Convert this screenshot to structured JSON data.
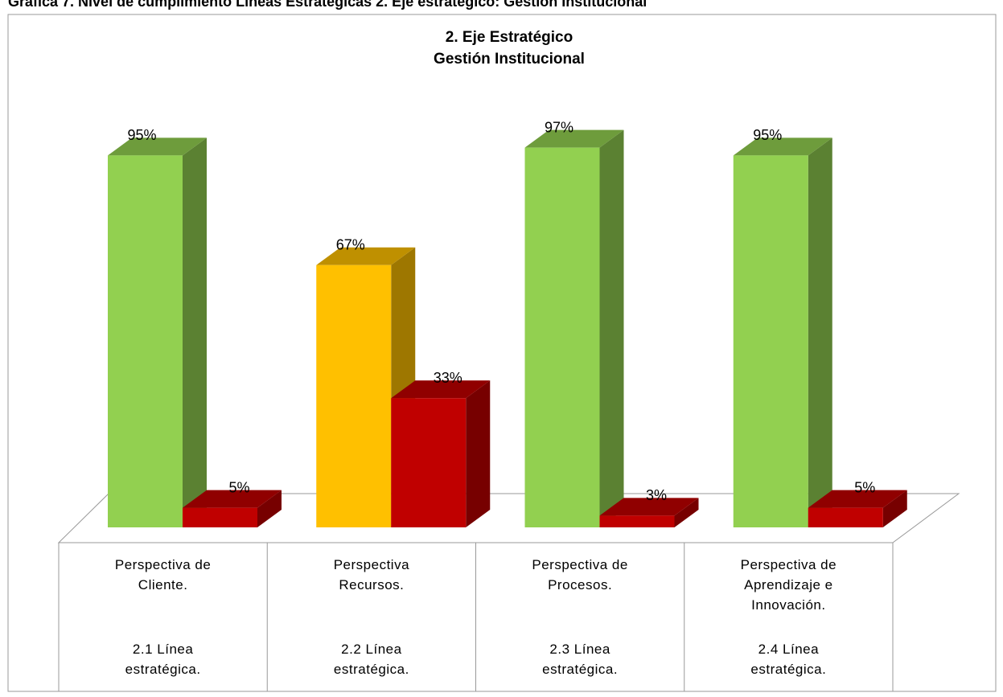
{
  "chart_data": {
    "type": "bar3d",
    "caption": "Gráfica 7. Nivel de cumplimiento Líneas Estratégicas 2. Eje estratégico: Gestión Institucional",
    "title": [
      "2. Eje Estratégico",
      "Gestión Institucional"
    ],
    "categories": [
      "Perspectiva de Cliente.",
      "Perspectiva Recursos.",
      "Perspectiva de Procesos.",
      "Perspectiva de Aprendizaje e Innovación."
    ],
    "subcategories": [
      "2.1 Línea estratégica.",
      "2.2 Línea estratégica.",
      "2.3 Línea estratégica.",
      "2.4 Línea estratégica."
    ],
    "series": [
      {
        "colors": [
          "#92d050",
          "#ffc000",
          "#92d050",
          "#92d050"
        ],
        "values": [
          95,
          67,
          97,
          95
        ],
        "value_labels": [
          "95%",
          "67%",
          "97%",
          "95%"
        ]
      },
      {
        "colors": [
          "#c00000",
          "#c00000",
          "#c00000",
          "#c00000"
        ],
        "values": [
          5,
          33,
          3,
          5
        ],
        "value_labels": [
          "5%",
          "33%",
          "3%",
          "5%"
        ]
      }
    ]
  }
}
